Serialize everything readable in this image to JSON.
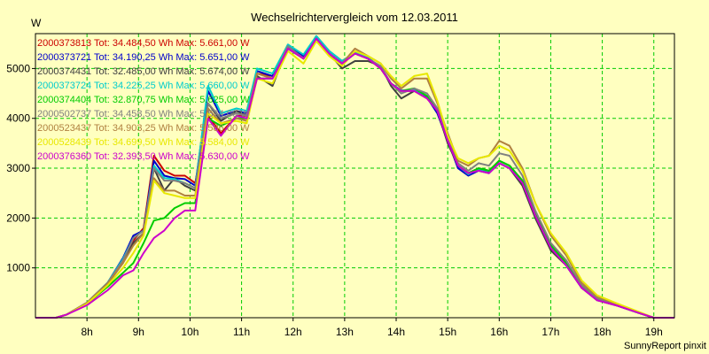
{
  "chart_data": {
    "type": "line",
    "title": "Wechselrichtervergleich vom 12.03.2011",
    "ylabel": "W",
    "xlabel": "",
    "footer": "SunnyReport pinxit",
    "xlim": [
      7.0,
      19.4
    ],
    "ylim": [
      0,
      5700
    ],
    "x_ticks": [
      {
        "value": 8,
        "label": "8h"
      },
      {
        "value": 9,
        "label": "9h"
      },
      {
        "value": 10,
        "label": "10h"
      },
      {
        "value": 11,
        "label": "11h"
      },
      {
        "value": 12,
        "label": "12h"
      },
      {
        "value": 13,
        "label": "13h"
      },
      {
        "value": 14,
        "label": "14h"
      },
      {
        "value": 15,
        "label": "15h"
      },
      {
        "value": 16,
        "label": "16h"
      },
      {
        "value": 17,
        "label": "17h"
      },
      {
        "value": 18,
        "label": "18h"
      },
      {
        "value": 19,
        "label": "19h"
      }
    ],
    "y_ticks": [
      {
        "value": 1000,
        "label": "1000"
      },
      {
        "value": 2000,
        "label": "2000"
      },
      {
        "value": 3000,
        "label": "3000"
      },
      {
        "value": 4000,
        "label": "4000"
      },
      {
        "value": 5000,
        "label": "5000"
      }
    ],
    "grid": true,
    "legend_position": "top-left",
    "series": [
      {
        "name": "2000373813 Tot: 34.484,50 Wh Max: 5.661,00 W",
        "color": "#cc0000",
        "x": [
          7.0,
          7.4,
          7.6,
          8.0,
          8.4,
          8.7,
          8.9,
          9.1,
          9.3,
          9.5,
          9.7,
          9.9,
          10.1,
          10.35,
          10.6,
          10.9,
          11.1,
          11.3,
          11.6,
          11.9,
          12.2,
          12.45,
          12.7,
          12.95,
          13.2,
          13.45,
          13.7,
          13.9,
          14.1,
          14.35,
          14.6,
          14.8,
          15.0,
          15.2,
          15.4,
          15.6,
          15.8,
          16.0,
          16.2,
          16.45,
          16.7,
          17.0,
          17.3,
          17.6,
          17.9,
          18.3,
          18.7,
          19.0,
          19.4
        ],
        "y": [
          0,
          0,
          60,
          300,
          700,
          1150,
          1550,
          1800,
          3250,
          2950,
          2850,
          2850,
          2700,
          4050,
          3700,
          4050,
          4050,
          4900,
          4850,
          5400,
          5200,
          5600,
          5300,
          5100,
          5300,
          5200,
          5000,
          4700,
          4550,
          4550,
          4400,
          4150,
          3600,
          3050,
          2880,
          2980,
          2920,
          3150,
          3050,
          2750,
          2100,
          1450,
          1100,
          650,
          380,
          250,
          100,
          0,
          0
        ]
      },
      {
        "name": "2000373721 Tot: 34.190,25 Wh Max: 5.651,00 W",
        "color": "#0000cc",
        "x": [
          7.0,
          7.4,
          7.6,
          8.0,
          8.4,
          8.7,
          8.9,
          9.1,
          9.3,
          9.5,
          9.7,
          9.9,
          10.1,
          10.35,
          10.6,
          10.9,
          11.1,
          11.3,
          11.6,
          11.9,
          12.2,
          12.45,
          12.7,
          12.95,
          13.2,
          13.45,
          13.7,
          13.9,
          14.1,
          14.35,
          14.6,
          14.8,
          15.0,
          15.2,
          15.4,
          15.6,
          15.8,
          16.0,
          16.2,
          16.45,
          16.7,
          17.0,
          17.3,
          17.6,
          17.9,
          18.3,
          18.7,
          19.0,
          19.4
        ],
        "y": [
          0,
          0,
          60,
          300,
          700,
          1200,
          1650,
          1750,
          3150,
          2850,
          2800,
          2780,
          2650,
          4550,
          4050,
          4150,
          4100,
          4950,
          4850,
          5480,
          5250,
          5650,
          5350,
          5150,
          5320,
          5220,
          5020,
          4700,
          4560,
          4560,
          4420,
          4100,
          3550,
          3000,
          2850,
          2950,
          2900,
          3100,
          3000,
          2700,
          2050,
          1400,
          1050,
          600,
          360,
          240,
          100,
          0,
          0
        ]
      },
      {
        "name": "2000374431 Tot: 32.485,00 Wh Max: 5.674,00 W",
        "color": "#404040",
        "x": [
          7.0,
          7.4,
          7.6,
          8.0,
          8.4,
          8.7,
          8.9,
          9.1,
          9.3,
          9.5,
          9.7,
          9.9,
          10.1,
          10.35,
          10.6,
          10.9,
          11.1,
          11.3,
          11.6,
          11.9,
          12.2,
          12.45,
          12.7,
          12.95,
          13.2,
          13.45,
          13.7,
          13.9,
          14.1,
          14.35,
          14.6,
          14.8,
          15.0,
          15.2,
          15.4,
          15.6,
          15.8,
          16.0,
          16.2,
          16.45,
          16.7,
          17.0,
          17.3,
          17.6,
          17.9,
          18.3,
          18.7,
          19.0,
          19.4
        ],
        "y": [
          0,
          0,
          60,
          290,
          680,
          1100,
          1500,
          1700,
          3000,
          2550,
          2800,
          2650,
          2550,
          4300,
          3950,
          4150,
          4050,
          4850,
          4650,
          5450,
          5200,
          5550,
          5300,
          5000,
          5150,
          5150,
          5050,
          4650,
          4400,
          4550,
          4450,
          4150,
          3500,
          3050,
          2900,
          3000,
          2950,
          3100,
          3000,
          2650,
          2000,
          1350,
          1050,
          600,
          350,
          240,
          100,
          0,
          0
        ]
      },
      {
        "name": "2000373724 Tot: 34.225,25 Wh Max: 5.660,00 W",
        "color": "#00cccc",
        "x": [
          7.0,
          7.4,
          7.6,
          8.0,
          8.4,
          8.7,
          8.9,
          9.1,
          9.3,
          9.5,
          9.7,
          9.9,
          10.1,
          10.35,
          10.6,
          10.9,
          11.1,
          11.3,
          11.6,
          11.9,
          12.2,
          12.45,
          12.7,
          12.95,
          13.2,
          13.45,
          13.7,
          13.9,
          14.1,
          14.35,
          14.6,
          14.8,
          15.0,
          15.2,
          15.4,
          15.6,
          15.8,
          16.0,
          16.2,
          16.45,
          16.7,
          17.0,
          17.3,
          17.6,
          17.9,
          18.3,
          18.7,
          19.0,
          19.4
        ],
        "y": [
          0,
          0,
          60,
          300,
          700,
          1180,
          1600,
          1750,
          3050,
          2800,
          2780,
          2700,
          2600,
          4650,
          4100,
          4200,
          4150,
          5000,
          4900,
          5480,
          5280,
          5650,
          5350,
          5150,
          5320,
          5220,
          5020,
          4700,
          4560,
          4580,
          4450,
          4150,
          3600,
          3050,
          2880,
          2980,
          2940,
          3150,
          3050,
          2750,
          2100,
          1450,
          1080,
          620,
          370,
          250,
          100,
          0,
          0
        ]
      },
      {
        "name": "2000374404 Tot: 32.870,75 Wh Max: 5.625,00 W",
        "color": "#00cc00",
        "x": [
          7.0,
          7.4,
          7.6,
          8.0,
          8.4,
          8.7,
          8.9,
          9.1,
          9.3,
          9.5,
          9.7,
          9.9,
          10.1,
          10.35,
          10.6,
          10.9,
          11.1,
          11.3,
          11.6,
          11.9,
          12.2,
          12.45,
          12.7,
          12.95,
          13.2,
          13.45,
          13.7,
          13.9,
          14.1,
          14.35,
          14.6,
          14.8,
          15.0,
          15.2,
          15.4,
          15.6,
          15.8,
          16.0,
          16.2,
          16.45,
          16.7,
          17.0,
          17.3,
          17.6,
          17.9,
          18.3,
          18.7,
          19.0,
          19.4
        ],
        "y": [
          0,
          0,
          60,
          280,
          620,
          900,
          1100,
          1500,
          1950,
          2000,
          2200,
          2300,
          2300,
          4000,
          3850,
          4000,
          4000,
          4800,
          4800,
          5400,
          5200,
          5600,
          5300,
          5100,
          5300,
          5200,
          5000,
          4700,
          4550,
          4600,
          4450,
          4150,
          3600,
          3050,
          2900,
          3000,
          2950,
          3150,
          3050,
          2750,
          2100,
          1450,
          1100,
          650,
          380,
          250,
          100,
          0,
          0
        ]
      },
      {
        "name": "2000502737 Tot: 34.458,50 Wh Max: 5.574,00 W",
        "color": "#808080",
        "x": [
          7.0,
          7.4,
          7.6,
          8.0,
          8.4,
          8.7,
          8.9,
          9.1,
          9.3,
          9.5,
          9.7,
          9.9,
          10.1,
          10.35,
          10.6,
          10.9,
          11.1,
          11.3,
          11.6,
          11.9,
          12.2,
          12.45,
          12.7,
          12.95,
          13.2,
          13.45,
          13.7,
          13.9,
          14.1,
          14.35,
          14.6,
          14.8,
          15.0,
          15.2,
          15.4,
          15.6,
          15.8,
          16.0,
          16.2,
          16.45,
          16.7,
          17.0,
          17.3,
          17.6,
          17.9,
          18.3,
          18.7,
          19.0,
          19.4
        ],
        "y": [
          0,
          0,
          60,
          300,
          690,
          1150,
          1600,
          1750,
          3000,
          2750,
          2750,
          2700,
          2600,
          4300,
          4000,
          4100,
          4050,
          4900,
          4800,
          5450,
          5200,
          5550,
          5300,
          5100,
          5300,
          5200,
          5050,
          4700,
          4500,
          4600,
          4500,
          4200,
          3650,
          3100,
          2950,
          3100,
          3050,
          3300,
          3250,
          2850,
          2150,
          1500,
          1150,
          650,
          380,
          250,
          100,
          0,
          0
        ]
      },
      {
        "name": "2000523437 Tot: 34.903,25 Wh Max: 5.586,00 W",
        "color": "#b08040",
        "x": [
          7.0,
          7.4,
          7.6,
          8.0,
          8.4,
          8.7,
          8.9,
          9.1,
          9.3,
          9.5,
          9.7,
          9.9,
          10.1,
          10.35,
          10.6,
          10.9,
          11.1,
          11.3,
          11.6,
          11.9,
          12.2,
          12.45,
          12.7,
          12.95,
          13.2,
          13.45,
          13.7,
          13.9,
          14.1,
          14.35,
          14.6,
          14.8,
          15.0,
          15.2,
          15.4,
          15.6,
          15.8,
          16.0,
          16.2,
          16.45,
          16.7,
          17.0,
          17.3,
          17.6,
          17.9,
          18.3,
          18.7,
          19.0,
          19.4
        ],
        "y": [
          0,
          0,
          60,
          300,
          690,
          1100,
          1450,
          1700,
          2800,
          2550,
          2550,
          2450,
          2450,
          4200,
          3900,
          4000,
          3950,
          4900,
          4800,
          5400,
          5200,
          5550,
          5300,
          5100,
          5400,
          5250,
          5100,
          4800,
          4600,
          4800,
          4800,
          4300,
          3700,
          3150,
          3050,
          3200,
          3250,
          3550,
          3450,
          3000,
          2300,
          1650,
          1250,
          700,
          420,
          270,
          110,
          0,
          0
        ]
      },
      {
        "name": "2000528439 Tot: 34.699,50 Wh Max: 5.584,00 W",
        "color": "#e8e800",
        "x": [
          7.0,
          7.4,
          7.6,
          8.0,
          8.4,
          8.7,
          8.9,
          9.1,
          9.3,
          9.5,
          9.7,
          9.9,
          10.1,
          10.35,
          10.6,
          10.9,
          11.1,
          11.3,
          11.6,
          11.9,
          12.2,
          12.45,
          12.7,
          12.95,
          13.2,
          13.45,
          13.7,
          13.9,
          14.1,
          14.35,
          14.6,
          14.8,
          15.0,
          15.2,
          15.4,
          15.6,
          15.8,
          16.0,
          16.2,
          16.45,
          16.7,
          17.0,
          17.3,
          17.6,
          17.9,
          18.3,
          18.7,
          19.0,
          19.4
        ],
        "y": [
          0,
          0,
          60,
          280,
          650,
          1000,
          1300,
          1650,
          2750,
          2500,
          2450,
          2400,
          2400,
          4100,
          3900,
          3950,
          3900,
          4800,
          4700,
          5350,
          5100,
          5550,
          5250,
          5050,
          5350,
          5250,
          5100,
          4850,
          4650,
          4850,
          4900,
          4350,
          3650,
          3200,
          3100,
          3200,
          3250,
          3450,
          3350,
          2950,
          2300,
          1700,
          1300,
          750,
          450,
          280,
          120,
          0,
          0
        ]
      },
      {
        "name": "2000376360 Tot: 32.393,50 Wh Max: 5.630,00 W",
        "color": "#cc00cc",
        "x": [
          7.0,
          7.4,
          7.6,
          8.0,
          8.4,
          8.7,
          8.9,
          9.1,
          9.3,
          9.5,
          9.7,
          9.9,
          10.1,
          10.35,
          10.6,
          10.9,
          11.1,
          11.3,
          11.6,
          11.9,
          12.2,
          12.45,
          12.7,
          12.95,
          13.2,
          13.45,
          13.7,
          13.9,
          14.1,
          14.35,
          14.6,
          14.8,
          15.0,
          15.2,
          15.4,
          15.6,
          15.8,
          16.0,
          16.2,
          16.45,
          16.7,
          17.0,
          17.3,
          17.6,
          17.9,
          18.3,
          18.7,
          19.0,
          19.4
        ],
        "y": [
          0,
          0,
          60,
          250,
          550,
          850,
          950,
          1300,
          1600,
          1750,
          2000,
          2150,
          2150,
          4000,
          3650,
          4050,
          4000,
          4800,
          4800,
          5400,
          5200,
          5600,
          5300,
          5100,
          5300,
          5200,
          5000,
          4700,
          4550,
          4550,
          4400,
          4150,
          3550,
          3050,
          2900,
          2950,
          2900,
          3100,
          3000,
          2700,
          2050,
          1400,
          1050,
          600,
          350,
          240,
          100,
          0,
          0
        ]
      }
    ]
  }
}
